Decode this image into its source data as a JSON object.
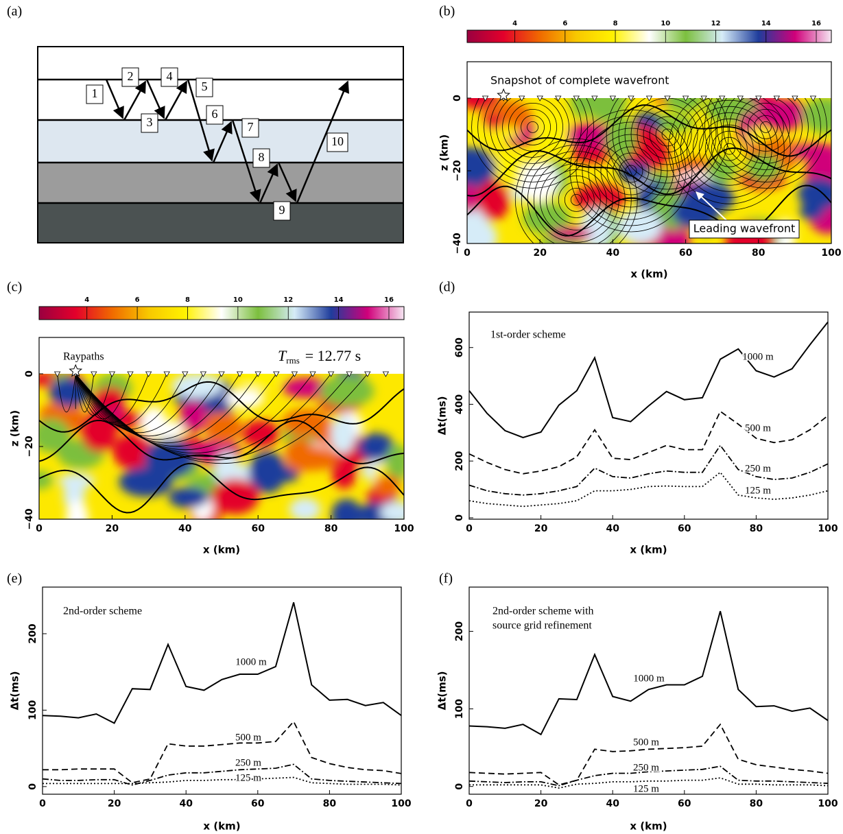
{
  "diagram": {
    "panel": "(a)",
    "ray_labels": [
      "1",
      "2",
      "3",
      "4",
      "5",
      "6",
      "7",
      "8",
      "9",
      "10"
    ]
  },
  "chart_data": [
    {
      "type": "field",
      "panel": "(b)",
      "xlabel": "x (km)",
      "ylabel": "z (km)",
      "xlim": [
        0,
        100
      ],
      "ylim": [
        -40,
        10
      ],
      "xticks": [
        0,
        20,
        40,
        60,
        80,
        100
      ],
      "yticks": [
        0,
        {
          "value": -20,
          "label": "−20"
        },
        {
          "value": -40,
          "label": "−40"
        }
      ],
      "clim": [
        2.1,
        16.6
      ],
      "cticks": [
        4,
        6,
        8,
        10,
        12,
        14,
        16
      ],
      "colormap": [
        "#9a0040",
        "#e3002b",
        "#f06a00",
        "#f8c800",
        "#fff200",
        "#ffffff",
        "#7cbf3e",
        "#d6ecf8",
        "#1f3d9c",
        "#d0007a",
        "#f6e6f2"
      ],
      "annotation": [
        "Snapshot of complete wavefront",
        "Leading wavefront"
      ]
    },
    {
      "type": "field",
      "panel": "(c)",
      "xlabel": "x (km)",
      "ylabel": "z (km)",
      "xlim": [
        0,
        100
      ],
      "ylim": [
        -40,
        10
      ],
      "xticks": [
        0,
        20,
        40,
        60,
        80,
        100
      ],
      "yticks": [
        0,
        {
          "value": -20,
          "label": "−20"
        },
        {
          "value": -40,
          "label": "−40"
        }
      ],
      "clim": [
        2.1,
        16.6
      ],
      "cticks": [
        4,
        6,
        8,
        10,
        12,
        14,
        16
      ],
      "colormap": [
        "#9a0040",
        "#e3002b",
        "#f06a00",
        "#f8c800",
        "#fff200",
        "#ffffff",
        "#7cbf3e",
        "#d6ecf8",
        "#1f3d9c",
        "#d0007a",
        "#f6e6f2"
      ],
      "annotation": [
        "Raypaths"
      ],
      "stat": {
        "symbol": "T",
        "subscript": "rms",
        "text": "= 12.77 s"
      }
    },
    {
      "type": "line",
      "panel": "(d)",
      "xlabel": "x (km)",
      "ylabel": "Δt(ms)",
      "xlim": [
        0,
        100
      ],
      "ylim": [
        -5,
        725
      ],
      "xticks": [
        0,
        20,
        40,
        60,
        80,
        100
      ],
      "yticks": [
        0,
        200,
        400,
        600
      ],
      "annotation": [
        "1st-order scheme"
      ],
      "x": [
        0,
        5,
        10,
        15,
        20,
        25,
        30,
        35,
        40,
        45,
        50,
        55,
        60,
        65,
        70,
        75,
        80,
        85,
        90,
        95,
        100
      ],
      "series": [
        {
          "name": "1000 m",
          "color": "#000000",
          "linestyle": "solid",
          "values": [
            448,
            368,
            307,
            283,
            302,
            397,
            448,
            564,
            353,
            339,
            394,
            445,
            416,
            423,
            559,
            595,
            518,
            496,
            525,
            610,
            690
          ]
        },
        {
          "name": "500 m",
          "color": "#000000",
          "linestyle": "dashed",
          "values": [
            225,
            195,
            170,
            155,
            165,
            180,
            215,
            310,
            210,
            205,
            230,
            255,
            240,
            240,
            375,
            330,
            280,
            265,
            275,
            310,
            360
          ]
        },
        {
          "name": "250 m",
          "color": "#000000",
          "linestyle": "dashdot",
          "values": [
            115,
            95,
            85,
            80,
            85,
            95,
            110,
            175,
            145,
            140,
            155,
            165,
            160,
            160,
            255,
            170,
            145,
            135,
            140,
            160,
            190
          ]
        },
        {
          "name": "125 m",
          "color": "#000000",
          "linestyle": "dotted",
          "values": [
            60,
            50,
            45,
            40,
            45,
            50,
            60,
            95,
            95,
            100,
            110,
            112,
            110,
            110,
            160,
            80,
            70,
            65,
            70,
            80,
            95
          ]
        }
      ]
    },
    {
      "type": "line",
      "panel": "(e)",
      "xlabel": "x (km)",
      "ylabel": "Δt(ms)",
      "xlim": [
        0,
        100
      ],
      "ylim": [
        -10,
        261
      ],
      "xticks": [
        0,
        20,
        40,
        60,
        80,
        100
      ],
      "yticks": [
        0,
        100,
        200
      ],
      "annotation": [
        "2nd-order scheme"
      ],
      "x": [
        0,
        5,
        10,
        15,
        20,
        25,
        30,
        35,
        40,
        45,
        50,
        55,
        60,
        65,
        70,
        75,
        80,
        85,
        90,
        95,
        100
      ],
      "series": [
        {
          "name": "1000 m",
          "color": "#000000",
          "linestyle": "solid",
          "values": [
            93,
            92,
            90,
            95,
            83,
            128,
            127,
            186,
            131,
            126,
            140,
            147,
            147,
            157,
            241,
            133,
            113,
            114,
            106,
            110,
            93
          ]
        },
        {
          "name": "500 m",
          "color": "#000000",
          "linestyle": "dashed",
          "values": [
            22,
            22,
            23,
            23,
            23,
            5,
            10,
            56,
            53,
            53,
            55,
            57,
            57,
            59,
            85,
            38,
            30,
            25,
            22,
            21,
            17
          ]
        },
        {
          "name": "250 m",
          "color": "#000000",
          "linestyle": "dashdot",
          "values": [
            10,
            8,
            8,
            9,
            9,
            2,
            8,
            15,
            18,
            18,
            20,
            22,
            23,
            24,
            29,
            10,
            8,
            7,
            6,
            5,
            4
          ]
        },
        {
          "name": "125 m",
          "color": "#000000",
          "linestyle": "dotted",
          "values": [
            4,
            4,
            4,
            4,
            4,
            4,
            5,
            6,
            8,
            8,
            9,
            9,
            10,
            11,
            12,
            5,
            4,
            3,
            3,
            3,
            2
          ]
        }
      ]
    },
    {
      "type": "line",
      "panel": "(f)",
      "xlabel": "x (km)",
      "ylabel": "Δt(ms)",
      "xlim": [
        0,
        100
      ],
      "ylim": [
        -10,
        257
      ],
      "xticks": [
        0,
        20,
        40,
        60,
        80,
        100
      ],
      "yticks": [
        0,
        100,
        200
      ],
      "annotation": [
        "2nd-order scheme with",
        "source grid refinement"
      ],
      "x": [
        0,
        5,
        10,
        15,
        20,
        25,
        30,
        35,
        40,
        45,
        50,
        55,
        60,
        65,
        70,
        75,
        80,
        85,
        90,
        95,
        100
      ],
      "series": [
        {
          "name": "1000 m",
          "color": "#000000",
          "linestyle": "solid",
          "values": [
            78,
            77,
            75,
            80,
            67,
            113,
            112,
            170,
            116,
            110,
            125,
            131,
            131,
            142,
            226,
            125,
            103,
            104,
            97,
            101,
            85
          ]
        },
        {
          "name": "500 m",
          "color": "#000000",
          "linestyle": "dashed",
          "values": [
            18,
            17,
            16,
            17,
            18,
            2,
            8,
            48,
            45,
            46,
            48,
            49,
            50,
            52,
            80,
            35,
            28,
            25,
            22,
            20,
            17
          ]
        },
        {
          "name": "250 m",
          "color": "#000000",
          "linestyle": "dashdot",
          "values": [
            7,
            6,
            5,
            6,
            6,
            1,
            8,
            14,
            17,
            17,
            19,
            20,
            21,
            22,
            26,
            8,
            7,
            7,
            6,
            5,
            4
          ]
        },
        {
          "name": "125 m",
          "color": "#000000",
          "linestyle": "dotted",
          "values": [
            2,
            2,
            2,
            2,
            2,
            -2,
            3,
            4,
            6,
            6,
            7,
            7,
            8,
            8,
            11,
            3,
            3,
            2,
            2,
            2,
            1
          ]
        }
      ]
    }
  ]
}
